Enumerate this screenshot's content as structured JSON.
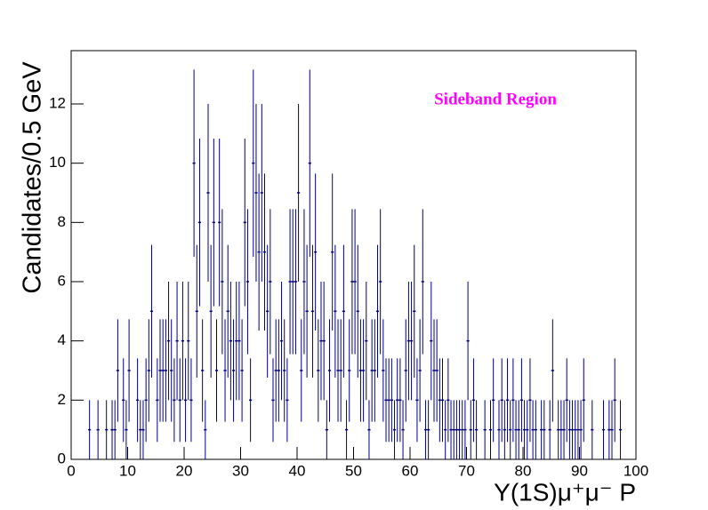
{
  "chart_data": {
    "type": "errorbar",
    "y_label": "Candidates/0.5 GeV",
    "x_label": "Υ(1S)μ⁺μ⁻ P",
    "annotation": "Sideband Region",
    "annotation_color": "#ff00ff",
    "color": "#000080",
    "xlim": [
      0,
      100
    ],
    "xticks": [
      0,
      10,
      20,
      30,
      40,
      50,
      60,
      70,
      80,
      90,
      100
    ],
    "ylim": [
      0,
      13.8
    ],
    "yticks": [
      0,
      2,
      4,
      6,
      8,
      10,
      12
    ],
    "x": [
      3.25,
      4.75,
      6.25,
      7.25,
      7.75,
      8.25,
      9.25,
      9.75,
      10.25,
      11.75,
      12.25,
      12.75,
      13.25,
      13.75,
      14.25,
      15.25,
      15.75,
      16.25,
      16.75,
      17.25,
      17.75,
      18.25,
      18.75,
      19.25,
      19.75,
      20.25,
      20.75,
      21.25,
      21.75,
      22.25,
      22.75,
      23.25,
      23.75,
      24.25,
      24.75,
      25.25,
      25.75,
      26.25,
      26.75,
      27.25,
      27.75,
      28.25,
      28.75,
      29.25,
      29.75,
      30.25,
      30.75,
      31.25,
      31.75,
      32.25,
      32.75,
      33.25,
      33.75,
      34.25,
      34.75,
      35.25,
      35.75,
      36.25,
      36.75,
      37.25,
      37.75,
      38.25,
      38.75,
      39.25,
      39.75,
      40.25,
      40.75,
      41.25,
      41.75,
      42.25,
      42.75,
      43.25,
      43.75,
      44.25,
      44.75,
      45.25,
      45.75,
      46.25,
      46.75,
      47.25,
      47.75,
      48.25,
      48.75,
      49.25,
      49.75,
      50.25,
      50.75,
      51.25,
      51.75,
      52.25,
      52.75,
      53.25,
      53.75,
      54.25,
      54.75,
      55.25,
      55.75,
      56.25,
      56.75,
      57.25,
      57.75,
      58.25,
      58.75,
      59.25,
      59.75,
      60.25,
      60.75,
      61.25,
      61.75,
      62.25,
      62.75,
      63.25,
      63.75,
      64.25,
      64.75,
      65.25,
      65.75,
      66.25,
      66.75,
      67.25,
      67.75,
      68.25,
      68.75,
      69.25,
      69.75,
      70.25,
      70.75,
      71.25,
      71.75,
      73.25,
      74.25,
      74.75,
      75.75,
      76.25,
      76.75,
      77.25,
      77.75,
      78.25,
      78.75,
      79.25,
      79.75,
      80.25,
      80.75,
      81.25,
      81.75,
      82.25,
      83.25,
      83.75,
      84.75,
      85.25,
      86.25,
      86.75,
      87.25,
      87.75,
      88.25,
      88.75,
      89.25,
      89.75,
      90.25,
      90.75,
      92.25,
      94.25,
      95.25,
      95.75,
      96.25,
      97.25
    ],
    "values": [
      1,
      1,
      1,
      1,
      1,
      3,
      2,
      1,
      3,
      2,
      1,
      1,
      2,
      3,
      5,
      2,
      3,
      3,
      3,
      4,
      3,
      2,
      4,
      2,
      4,
      2,
      4,
      2,
      10,
      5,
      8,
      3,
      1,
      9,
      5,
      8,
      3,
      8,
      6,
      3,
      5,
      4,
      3,
      4,
      4,
      3,
      8,
      6,
      2,
      10,
      9,
      7,
      9,
      7,
      5,
      6,
      2,
      3,
      3,
      4,
      3,
      2,
      6,
      6,
      6,
      9,
      3,
      6,
      5,
      10,
      5,
      7,
      3,
      4,
      4,
      1,
      3,
      7,
      5,
      3,
      3,
      5,
      1,
      3,
      6,
      6,
      5,
      3,
      3,
      4,
      1,
      3,
      3,
      5,
      6,
      3,
      2,
      2,
      2,
      1,
      2,
      2,
      1,
      3,
      4,
      4,
      5,
      2,
      3,
      6,
      1,
      1,
      4,
      3,
      3,
      2,
      2,
      1,
      2,
      1,
      1,
      1,
      1,
      1,
      1,
      4,
      1,
      2,
      1,
      1,
      1,
      2,
      1,
      2,
      1,
      2,
      1,
      2,
      1,
      1,
      2,
      1,
      1,
      2,
      1,
      1,
      1,
      1,
      1,
      3,
      1,
      1,
      1,
      2,
      1,
      1,
      1,
      1,
      1,
      2,
      1,
      1,
      1,
      1,
      2,
      1
    ],
    "errors": [
      1,
      1,
      1,
      1,
      1,
      1.73,
      1.41,
      1,
      1.73,
      1.41,
      1,
      1,
      1.41,
      1.73,
      2.24,
      1.41,
      1.73,
      1.73,
      1.73,
      2,
      1.73,
      1.41,
      2,
      1.41,
      2,
      1.41,
      2,
      1.41,
      3.16,
      2.24,
      2.83,
      1.73,
      1,
      3,
      2.24,
      2.83,
      1.73,
      2.83,
      2.45,
      1.73,
      2.24,
      2,
      1.73,
      2,
      2,
      1.73,
      2.83,
      2.45,
      1.41,
      3.16,
      3,
      2.65,
      3,
      2.65,
      2.24,
      2.45,
      1.41,
      1.73,
      1.73,
      2,
      1.73,
      1.41,
      2.45,
      2.45,
      2.45,
      3,
      1.73,
      2.45,
      2.24,
      3.16,
      2.24,
      2.65,
      1.73,
      2,
      2,
      1,
      1.73,
      2.65,
      2.24,
      1.73,
      1.73,
      2.24,
      1,
      1.73,
      2.45,
      2.45,
      2.24,
      1.73,
      1.73,
      2,
      1,
      1.73,
      1.73,
      2.24,
      2.45,
      1.73,
      1.41,
      1.41,
      1.41,
      1,
      1.41,
      1.41,
      1,
      1.73,
      2,
      2,
      2.24,
      1.41,
      1.73,
      2.45,
      1,
      1,
      2,
      1.73,
      1.73,
      1.41,
      1.41,
      1,
      1.41,
      1,
      1,
      1,
      1,
      1,
      1,
      2,
      1,
      1.41,
      1,
      1,
      1,
      1.41,
      1,
      1.41,
      1,
      1.41,
      1,
      1.41,
      1,
      1,
      1.41,
      1,
      1,
      1.41,
      1,
      1,
      1,
      1,
      1,
      1.73,
      1,
      1,
      1,
      1.41,
      1,
      1,
      1,
      1,
      1,
      1.41,
      1,
      1,
      1,
      1,
      1.41,
      1
    ]
  }
}
